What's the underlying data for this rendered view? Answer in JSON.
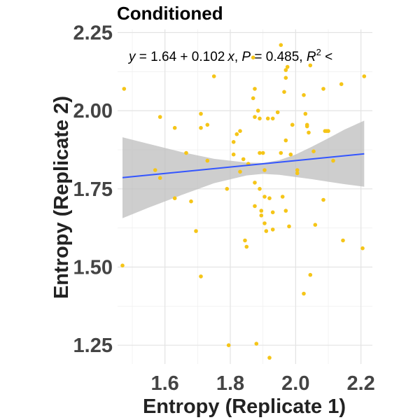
{
  "chart_data": {
    "type": "scatter",
    "title": "Conditioned",
    "xlabel": "Entropy (Replicate 1)",
    "ylabel": "Entropy (Replicate 2)",
    "xlim": [
      1.455,
      2.235
    ],
    "ylim": [
      1.19,
      2.26
    ],
    "x_ticks": [
      1.6,
      1.8,
      2.0,
      2.2
    ],
    "x_tick_labels": [
      "1.6",
      "1.8",
      "2.0",
      "2.2"
    ],
    "y_ticks": [
      1.25,
      1.5,
      1.75,
      2.0,
      2.25
    ],
    "y_tick_labels": [
      "1.25",
      "1.50",
      "1.75",
      "2.00",
      "2.25"
    ],
    "grid": true,
    "point_color": "#F5C518",
    "fit_line_color": "#3355FF",
    "ribbon_color": "#BEBEBE",
    "equation": {
      "y": "y",
      "eq_sign": " = ",
      "intercept": "1.64",
      "plus": " + ",
      "slope": "0.102",
      "x": "x",
      "sep1": ", ",
      "p_label": "P",
      "p_value": " = 0.485, ",
      "r_label": "R",
      "r_sup": "2",
      "r_rest": " <"
    },
    "fit": {
      "x": [
        1.47,
        2.21
      ],
      "y": [
        1.786,
        1.862
      ],
      "band_upper": [
        [
          1.47,
          1.915
        ],
        [
          1.55,
          1.894
        ],
        [
          1.65,
          1.868
        ],
        [
          1.75,
          1.846
        ],
        [
          1.85,
          1.834
        ],
        [
          1.9,
          1.833
        ],
        [
          1.95,
          1.842
        ],
        [
          2.0,
          1.86
        ],
        [
          2.05,
          1.885
        ],
        [
          2.1,
          1.912
        ],
        [
          2.15,
          1.94
        ],
        [
          2.21,
          1.968
        ]
      ],
      "band_lower": [
        [
          1.47,
          1.656
        ],
        [
          1.55,
          1.69
        ],
        [
          1.65,
          1.73
        ],
        [
          1.75,
          1.768
        ],
        [
          1.85,
          1.793
        ],
        [
          1.9,
          1.798
        ],
        [
          1.95,
          1.795
        ],
        [
          2.0,
          1.788
        ],
        [
          2.05,
          1.781
        ],
        [
          2.1,
          1.773
        ],
        [
          2.15,
          1.765
        ],
        [
          2.21,
          1.757
        ]
      ]
    },
    "points": [
      [
        1.475,
        2.07
      ],
      [
        1.47,
        1.505
      ],
      [
        1.57,
        1.81
      ],
      [
        1.585,
        1.98
      ],
      [
        1.585,
        1.785
      ],
      [
        1.63,
        1.945
      ],
      [
        1.63,
        1.72
      ],
      [
        1.665,
        1.865
      ],
      [
        1.68,
        1.71
      ],
      [
        1.695,
        1.615
      ],
      [
        1.71,
        1.99
      ],
      [
        1.71,
        1.945
      ],
      [
        1.71,
        1.47
      ],
      [
        1.73,
        1.955
      ],
      [
        1.73,
        1.84
      ],
      [
        1.75,
        2.11
      ],
      [
        1.795,
        1.25
      ],
      [
        1.79,
        1.75
      ],
      [
        1.81,
        1.9
      ],
      [
        1.81,
        1.86
      ],
      [
        1.82,
        1.925
      ],
      [
        1.83,
        1.935
      ],
      [
        1.83,
        1.805
      ],
      [
        1.84,
        1.845
      ],
      [
        1.845,
        1.585
      ],
      [
        1.85,
        1.565
      ],
      [
        1.855,
        1.83
      ],
      [
        1.87,
        2.17
      ],
      [
        1.875,
        2.07
      ],
      [
        1.87,
        2.04
      ],
      [
        1.875,
        1.98
      ],
      [
        1.875,
        1.77
      ],
      [
        1.875,
        1.695
      ],
      [
        1.88,
        1.255
      ],
      [
        1.885,
        2.0
      ],
      [
        1.89,
        1.975
      ],
      [
        1.89,
        1.865
      ],
      [
        1.89,
        1.75
      ],
      [
        1.895,
        1.68
      ],
      [
        1.895,
        1.665
      ],
      [
        1.9,
        1.865
      ],
      [
        1.905,
        1.81
      ],
      [
        1.905,
        1.725
      ],
      [
        1.905,
        1.64
      ],
      [
        1.91,
        1.615
      ],
      [
        1.915,
        1.975
      ],
      [
        1.92,
        1.72
      ],
      [
        1.92,
        1.21
      ],
      [
        1.93,
        1.675
      ],
      [
        1.93,
        1.62
      ],
      [
        1.93,
        1.975
      ],
      [
        1.945,
        1.995
      ],
      [
        1.955,
        2.21
      ],
      [
        1.955,
        1.865
      ],
      [
        1.96,
        1.725
      ],
      [
        1.965,
        2.06
      ],
      [
        1.97,
        2.13
      ],
      [
        1.97,
        2.105
      ],
      [
        1.97,
        1.905
      ],
      [
        1.97,
        1.68
      ],
      [
        1.975,
        2.14
      ],
      [
        1.98,
        1.63
      ],
      [
        1.985,
        1.86
      ],
      [
        1.99,
        1.955
      ],
      [
        2.005,
        1.81
      ],
      [
        2.005,
        1.8
      ],
      [
        2.025,
        2.05
      ],
      [
        2.025,
        1.415
      ],
      [
        2.03,
        1.99
      ],
      [
        2.035,
        1.955
      ],
      [
        2.035,
        1.95
      ],
      [
        2.04,
        1.93
      ],
      [
        2.045,
        2.145
      ],
      [
        2.045,
        1.475
      ],
      [
        2.055,
        1.87
      ],
      [
        2.06,
        1.635
      ],
      [
        2.085,
        2.07
      ],
      [
        2.085,
        1.715
      ],
      [
        2.09,
        1.935
      ],
      [
        2.095,
        1.935
      ],
      [
        2.115,
        1.84
      ],
      [
        2.14,
        2.085
      ],
      [
        2.145,
        1.585
      ],
      [
        2.205,
        1.56
      ],
      [
        2.21,
        2.11
      ],
      [
        2.1,
        1.935
      ],
      [
        1.99,
        1.955
      ]
    ]
  }
}
